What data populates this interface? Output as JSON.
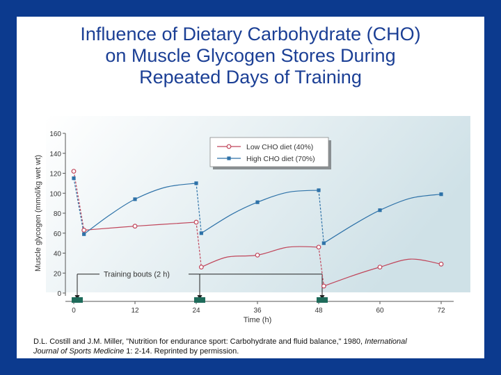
{
  "slide": {
    "title_lines": [
      "Influence of Dietary Carbohydrate (CHO)",
      "on Muscle Glycogen Stores During",
      "Repeated Days of Training"
    ],
    "caption": {
      "part1": "D.L. Costill and J.M. Miller, \"Nutrition for endurance sport: Carbohydrate and fluid balance,\" 1980, ",
      "journal_a": "International",
      "journal_b": "Journal of Sports Medicine",
      "part2": " 1: 2-14. Reprinted by permission."
    }
  },
  "colors": {
    "frame": "#0c3a8e",
    "title": "#1b3f95",
    "low_series": "#c0455a",
    "high_series": "#2e72a8",
    "plot_bg_light": "#ffffff",
    "plot_bg_dark": "#cfe1e7",
    "training_marker": "#1e6b5a"
  },
  "chart_data": {
    "type": "line",
    "xlabel": "Time (h)",
    "ylabel": "Muscle glycogen (mmol/kg wet wt)",
    "xlim": [
      0,
      72
    ],
    "ylim": [
      0,
      160
    ],
    "xticks": [
      0,
      12,
      24,
      36,
      48,
      60,
      72
    ],
    "yticks": [
      0,
      20,
      40,
      60,
      80,
      100,
      120,
      140,
      160
    ],
    "grid": false,
    "legend_position": "top-right",
    "series": [
      {
        "name": "Low CHO diet (40%)",
        "marker": "open-circle",
        "points": [
          [
            0,
            122
          ],
          [
            2,
            63
          ],
          [
            12,
            67
          ],
          [
            24,
            71
          ],
          [
            25,
            26
          ],
          [
            36,
            38
          ],
          [
            48,
            46
          ],
          [
            49,
            7
          ],
          [
            60,
            26
          ],
          [
            72,
            29
          ]
        ],
        "segments": [
          [
            [
              0,
              122
            ],
            [
              2,
              63
            ]
          ],
          [
            [
              2,
              63
            ],
            [
              12,
              67
            ],
            [
              24,
              71
            ]
          ],
          [
            [
              24,
              71
            ],
            [
              25,
              26
            ]
          ],
          [
            [
              25,
              26
            ],
            [
              30,
              36
            ],
            [
              36,
              38
            ],
            [
              42,
              46
            ],
            [
              48,
              46
            ]
          ],
          [
            [
              48,
              46
            ],
            [
              49,
              7
            ]
          ],
          [
            [
              49,
              7
            ],
            [
              55,
              18
            ],
            [
              60,
              26
            ],
            [
              66,
              34
            ],
            [
              72,
              29
            ]
          ]
        ]
      },
      {
        "name": "High CHO diet (70%)",
        "marker": "filled-square",
        "points": [
          [
            0,
            115
          ],
          [
            2,
            59
          ],
          [
            12,
            94
          ],
          [
            24,
            110
          ],
          [
            25,
            60
          ],
          [
            36,
            91
          ],
          [
            48,
            103
          ],
          [
            49,
            50
          ],
          [
            60,
            83
          ],
          [
            72,
            99
          ]
        ],
        "segments": [
          [
            [
              0,
              115
            ],
            [
              2,
              59
            ]
          ],
          [
            [
              2,
              59
            ],
            [
              7,
              78
            ],
            [
              12,
              94
            ],
            [
              18,
              106
            ],
            [
              24,
              110
            ]
          ],
          [
            [
              24,
              110
            ],
            [
              25,
              60
            ]
          ],
          [
            [
              25,
              60
            ],
            [
              31,
              79
            ],
            [
              36,
              91
            ],
            [
              42,
              101
            ],
            [
              48,
              103
            ]
          ],
          [
            [
              48,
              103
            ],
            [
              49,
              50
            ]
          ],
          [
            [
              49,
              50
            ],
            [
              55,
              69
            ],
            [
              60,
              83
            ],
            [
              66,
              95
            ],
            [
              72,
              99
            ]
          ]
        ]
      }
    ],
    "annotation": {
      "text": "Training bouts (2 h)",
      "bouts": [
        0,
        24,
        48
      ]
    }
  }
}
